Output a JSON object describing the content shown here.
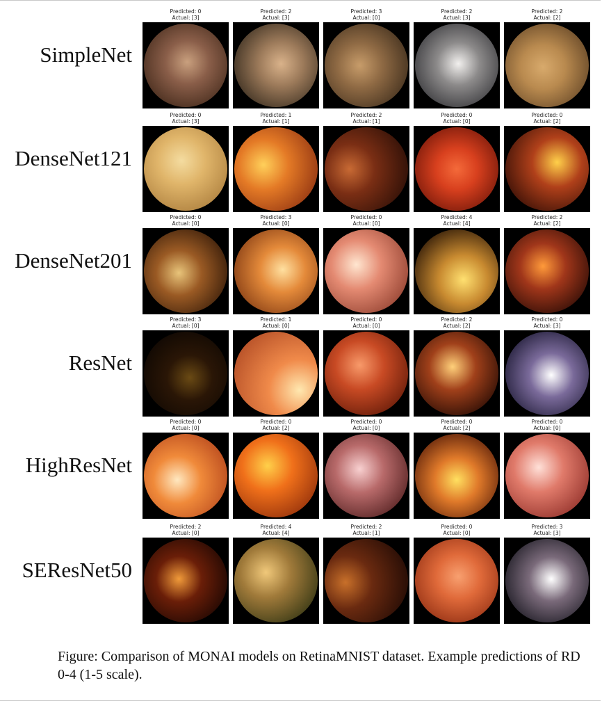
{
  "figure": {
    "caption": "Figure: Comparison of MONAI models on RetinaMNIST dataset. Example predictions of RD 0-4 (1-5 scale).",
    "rows": [
      {
        "model": "SimpleNet",
        "samples": [
          {
            "predicted": "Predicted: 0",
            "actual": "Actual: [3]",
            "colors": [
              "#c9a07e",
              "#8a5e49",
              "#3b2416"
            ]
          },
          {
            "predicted": "Predicted: 2",
            "actual": "Actual: [3]",
            "colors": [
              "#d9b28a",
              "#9c7a5a",
              "#2c2318"
            ]
          },
          {
            "predicted": "Predicted: 3",
            "actual": "Actual: [0]",
            "colors": [
              "#c79c6a",
              "#8f6a44",
              "#3a2a1a"
            ]
          },
          {
            "predicted": "Predicted: 2",
            "actual": "Actual: [3]",
            "colors": [
              "#f2f0ee",
              "#8c8a8a",
              "#2c2c30"
            ]
          },
          {
            "predicted": "Predicted: 2",
            "actual": "Actual: [2]",
            "colors": [
              "#d8aa6c",
              "#b98a4f",
              "#5a3e22"
            ]
          }
        ]
      },
      {
        "model": "DenseNet121",
        "samples": [
          {
            "predicted": "Predicted: 0",
            "actual": "Actual: [3]",
            "colors": [
              "#f4dca0",
              "#e0b56a",
              "#a87a3a"
            ]
          },
          {
            "predicted": "Predicted: 1",
            "actual": "Actual: [1]",
            "colors": [
              "#ffd05a",
              "#e47a26",
              "#8a2e10"
            ]
          },
          {
            "predicted": "Predicted: 2",
            "actual": "Actual: [1]",
            "colors": [
              "#c86a34",
              "#7a2e14",
              "#2a0e06"
            ]
          },
          {
            "predicted": "Predicted: 0",
            "actual": "Actual: [0]",
            "colors": [
              "#f46a3a",
              "#d8401e",
              "#6a1408"
            ]
          },
          {
            "predicted": "Predicted: 0",
            "actual": "Actual: [2]",
            "colors": [
              "#ffd04a",
              "#b0401a",
              "#2a0a04"
            ]
          }
        ]
      },
      {
        "model": "DenseNet201",
        "samples": [
          {
            "predicted": "Predicted: 0",
            "actual": "Actual: [0]",
            "colors": [
              "#e8c47a",
              "#9a5a24",
              "#2a1406"
            ]
          },
          {
            "predicted": "Predicted: 3",
            "actual": "Actual: [0]",
            "colors": [
              "#ffe0a0",
              "#e48a3a",
              "#7a3410"
            ]
          },
          {
            "predicted": "Predicted: 0",
            "actual": "Actual: [0]",
            "colors": [
              "#ffe6d0",
              "#e48a72",
              "#8a3a2a"
            ]
          },
          {
            "predicted": "Predicted: 4",
            "actual": "Actual: [4]",
            "colors": [
              "#ffe070",
              "#c88a30",
              "#1a0a02"
            ]
          },
          {
            "predicted": "Predicted: 2",
            "actual": "Actual: [2]",
            "colors": [
              "#ff9a3a",
              "#a0361a",
              "#200804"
            ]
          }
        ]
      },
      {
        "model": "ResNet",
        "samples": [
          {
            "predicted": "Predicted: 3",
            "actual": "Actual: [0]",
            "colors": [
              "#6a4a14",
              "#2a1606",
              "#0a0502"
            ]
          },
          {
            "predicted": "Predicted: 1",
            "actual": "Actual: [0]",
            "colors": [
              "#ffe8b0",
              "#f08a4a",
              "#b04a24"
            ]
          },
          {
            "predicted": "Predicted: 0",
            "actual": "Actual: [0]",
            "colors": [
              "#f89a6a",
              "#c84a24",
              "#5a1606"
            ]
          },
          {
            "predicted": "Predicted: 2",
            "actual": "Actual: [2]",
            "colors": [
              "#ffd07a",
              "#a0401a",
              "#1a0602"
            ]
          },
          {
            "predicted": "Predicted: 0",
            "actual": "Actual: [3]",
            "colors": [
              "#ffffff",
              "#7a6a9a",
              "#14122a"
            ]
          }
        ]
      },
      {
        "model": "HighResNet",
        "samples": [
          {
            "predicted": "Predicted: 0",
            "actual": "Actual: [0]",
            "colors": [
              "#ffe8c0",
              "#f08a3a",
              "#b0401a"
            ]
          },
          {
            "predicted": "Predicted: 0",
            "actual": "Actual: [2]",
            "colors": [
              "#ffd04a",
              "#f0701a",
              "#8a2a0a"
            ]
          },
          {
            "predicted": "Predicted: 0",
            "actual": "Actual: [0]",
            "colors": [
              "#f8d0d0",
              "#b86a6a",
              "#4a1a1a"
            ]
          },
          {
            "predicted": "Predicted: 0",
            "actual": "Actual: [2]",
            "colors": [
              "#ffe060",
              "#e07a2a",
              "#4a1406"
            ]
          },
          {
            "predicted": "Predicted: 0",
            "actual": "Actual: [0]",
            "colors": [
              "#ffe0d8",
              "#e07a6a",
              "#8a2a24"
            ]
          }
        ]
      },
      {
        "model": "SEResNet50",
        "samples": [
          {
            "predicted": "Predicted: 2",
            "actual": "Actual: [0]",
            "colors": [
              "#f09a3a",
              "#6a1e08",
              "#120402"
            ]
          },
          {
            "predicted": "Predicted: 4",
            "actual": "Actual: [4]",
            "colors": [
              "#f0c87a",
              "#a07a3a",
              "#2a3010"
            ]
          },
          {
            "predicted": "Predicted: 2",
            "actual": "Actual: [1]",
            "colors": [
              "#c8702a",
              "#6a2a10",
              "#200a04"
            ]
          },
          {
            "predicted": "Predicted: 0",
            "actual": "Actual: [0]",
            "colors": [
              "#f8a070",
              "#e06a3a",
              "#8a2a10"
            ]
          },
          {
            "predicted": "Predicted: 3",
            "actual": "Actual: [3]",
            "colors": [
              "#ffffff",
              "#7a6a7a",
              "#101018"
            ]
          }
        ]
      }
    ]
  }
}
